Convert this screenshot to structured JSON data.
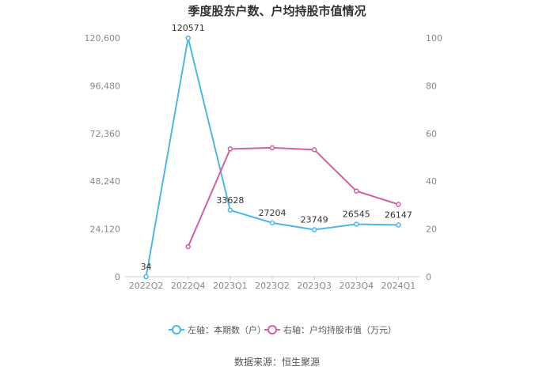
{
  "chart_data": {
    "type": "line",
    "title": "季度股东户数、户均持股市值情况",
    "categories": [
      "2022Q2",
      "2022Q4",
      "2023Q1",
      "2023Q2",
      "2023Q3",
      "2023Q4",
      "2024Q1"
    ],
    "left_axis": {
      "ticks": [
        "0",
        "24,120",
        "48,240",
        "72,360",
        "96,480",
        "120,600"
      ],
      "ylim": [
        0,
        120600
      ]
    },
    "right_axis": {
      "ticks": [
        "0",
        "20",
        "40",
        "60",
        "80",
        "100"
      ],
      "ylim": [
        0,
        100
      ]
    },
    "series": [
      {
        "name": "左轴：本期数（户）",
        "axis": "left",
        "color": "#4bb8e8",
        "values": [
          34,
          120571,
          33628,
          27204,
          23749,
          26545,
          26147
        ],
        "labels": [
          "34",
          "120571",
          "33628",
          "27204",
          "23749",
          "26545",
          "26147"
        ]
      },
      {
        "name": "右轴：户均持股市值（万元）",
        "axis": "right",
        "color": "#d05fa8",
        "values": [
          null,
          12.6,
          53.5,
          54.0,
          53.2,
          35.9,
          30.3
        ]
      }
    ],
    "legend_position": "bottom",
    "grid": false
  },
  "footer": {
    "source": "数据来源：恒生聚源"
  }
}
